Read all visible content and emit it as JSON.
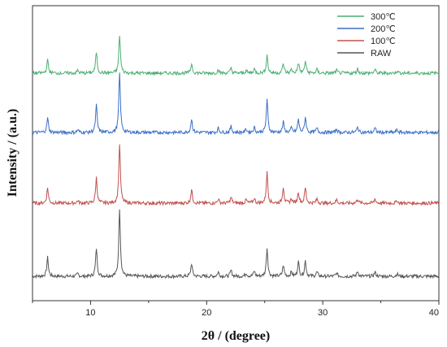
{
  "chart_data": {
    "type": "line",
    "title": "",
    "xlabel": "2θ / (degree)",
    "ylabel": "Intensity / (a.u.)",
    "xlim": [
      5,
      40
    ],
    "xticks": [
      10,
      20,
      30,
      40
    ],
    "xtick_labels": [
      "10",
      "20",
      "30",
      "40"
    ],
    "y_ticks_shown": false,
    "grid": false,
    "legend_position": "top-right",
    "legend_order": [
      "300℃",
      "200℃",
      "100℃",
      "RAW"
    ],
    "stack_order_top_to_bottom": [
      "300℃",
      "200℃",
      "100℃",
      "RAW"
    ],
    "baseline_noise": 0.02,
    "peaks_x": [
      6.3,
      8.9,
      10.5,
      12.5,
      18.7,
      21.0,
      22.1,
      23.4,
      24.1,
      25.2,
      26.6,
      27.3,
      27.9,
      28.5,
      29.5,
      31.2,
      33.0,
      34.5,
      36.4
    ],
    "series": [
      {
        "name": "RAW",
        "color": "#555555",
        "peaks": [
          0.22,
          0.03,
          0.33,
          0.8,
          0.15,
          0.05,
          0.07,
          0.04,
          0.06,
          0.33,
          0.13,
          0.05,
          0.17,
          0.18,
          0.05,
          0.04,
          0.06,
          0.05,
          0.03
        ]
      },
      {
        "name": "100℃",
        "color": "#c0504d",
        "peaks": [
          0.18,
          0.03,
          0.3,
          0.7,
          0.16,
          0.05,
          0.07,
          0.04,
          0.06,
          0.36,
          0.19,
          0.05,
          0.13,
          0.18,
          0.05,
          0.04,
          0.05,
          0.05,
          0.03
        ]
      },
      {
        "name": "200℃",
        "color": "#3a6fc4",
        "peaks": [
          0.17,
          0.03,
          0.32,
          0.7,
          0.16,
          0.05,
          0.07,
          0.04,
          0.06,
          0.38,
          0.12,
          0.05,
          0.15,
          0.18,
          0.05,
          0.04,
          0.06,
          0.05,
          0.03
        ]
      },
      {
        "name": "300℃",
        "color": "#4caf72",
        "peaks": [
          0.15,
          0.03,
          0.25,
          0.45,
          0.11,
          0.04,
          0.06,
          0.03,
          0.05,
          0.21,
          0.11,
          0.04,
          0.12,
          0.14,
          0.04,
          0.03,
          0.05,
          0.04,
          0.03
        ]
      }
    ]
  }
}
